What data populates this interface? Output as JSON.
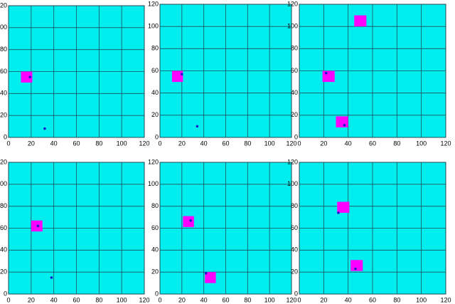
{
  "chart_data": [
    {
      "type": "scatter",
      "xlim": [
        0,
        120
      ],
      "ylim": [
        0,
        120
      ],
      "xticks": [
        0,
        20,
        40,
        60,
        80,
        100,
        120
      ],
      "yticks": [
        0,
        20,
        40,
        60,
        80,
        100,
        120
      ],
      "grid": true,
      "background": "#00eeee",
      "series": [
        {
          "marker": "square",
          "color": "#ff00ff",
          "x": [
            16
          ],
          "y": [
            55
          ]
        },
        {
          "marker": "point",
          "color": "#1a1acc",
          "x": [
            19,
            32
          ],
          "y": [
            55,
            8
          ]
        }
      ]
    },
    {
      "type": "scatter",
      "xlim": [
        0,
        120
      ],
      "ylim": [
        0,
        120
      ],
      "xticks": [
        0,
        20,
        40,
        60,
        80,
        100,
        120
      ],
      "yticks": [
        0,
        20,
        40,
        60,
        80,
        100,
        120
      ],
      "grid": true,
      "background": "#00eeee",
      "series": [
        {
          "marker": "square",
          "color": "#ff00ff",
          "x": [
            16
          ],
          "y": [
            55
          ]
        },
        {
          "marker": "point",
          "color": "#1a1acc",
          "x": [
            20,
            34
          ],
          "y": [
            57,
            10
          ]
        }
      ]
    },
    {
      "type": "scatter",
      "xlim": [
        0,
        120
      ],
      "ylim": [
        0,
        120
      ],
      "xticks": [
        0,
        20,
        40,
        60,
        80,
        100,
        120
      ],
      "yticks": [
        0,
        20,
        40,
        60,
        80,
        100,
        120
      ],
      "grid": true,
      "background": "#00eeee",
      "series": [
        {
          "marker": "square",
          "color": "#ff00ff",
          "x": [
            50,
            24,
            35
          ],
          "y": [
            105,
            55,
            14
          ]
        },
        {
          "marker": "point",
          "color": "#1a1acc",
          "x": [
            22,
            37
          ],
          "y": [
            58,
            11
          ]
        }
      ]
    },
    {
      "type": "scatter",
      "xlim": [
        0,
        120
      ],
      "ylim": [
        0,
        120
      ],
      "xticks": [
        0,
        20,
        40,
        60,
        80,
        100,
        120
      ],
      "yticks": [
        0,
        20,
        40,
        60,
        80,
        100,
        120
      ],
      "grid": true,
      "background": "#00eeee",
      "series": [
        {
          "marker": "square",
          "color": "#ff00ff",
          "x": [
            25
          ],
          "y": [
            62
          ]
        },
        {
          "marker": "point",
          "color": "#1a1acc",
          "x": [
            26,
            38
          ],
          "y": [
            62,
            15
          ]
        }
      ]
    },
    {
      "type": "scatter",
      "xlim": [
        0,
        120
      ],
      "ylim": [
        0,
        120
      ],
      "xticks": [
        0,
        20,
        40,
        60,
        80,
        100,
        120
      ],
      "yticks": [
        0,
        20,
        40,
        60,
        80,
        100,
        120
      ],
      "grid": true,
      "background": "#00eeee",
      "series": [
        {
          "marker": "square",
          "color": "#ff00ff",
          "x": [
            26,
            46
          ],
          "y": [
            66,
            15
          ]
        },
        {
          "marker": "point",
          "color": "#1a1acc",
          "x": [
            28,
            42
          ],
          "y": [
            67,
            19
          ]
        }
      ]
    },
    {
      "type": "scatter",
      "xlim": [
        0,
        120
      ],
      "ylim": [
        0,
        120
      ],
      "xticks": [
        0,
        20,
        40,
        60,
        80,
        100,
        120
      ],
      "yticks": [
        0,
        20,
        40,
        60,
        80,
        100,
        120
      ],
      "grid": true,
      "background": "#00eeee",
      "series": [
        {
          "marker": "square",
          "color": "#ff00ff",
          "x": [
            36,
            47
          ],
          "y": [
            79,
            26
          ]
        },
        {
          "marker": "point",
          "color": "#1a1acc",
          "x": [
            32,
            46
          ],
          "y": [
            74,
            23
          ]
        }
      ]
    }
  ]
}
